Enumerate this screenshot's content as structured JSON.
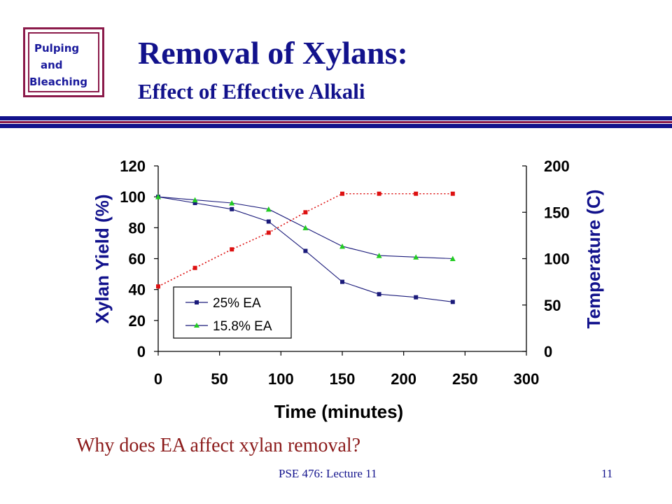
{
  "logo": {
    "line1": "Pulping",
    "line2": "and",
    "line3": "Bleaching"
  },
  "header": {
    "title": "Removal of Xylans:",
    "subtitle": "Effect of Effective Alkali"
  },
  "colors": {
    "title": "#12128c",
    "accent_red": "#8b1a4a",
    "series_ea25": "#1a1a7a",
    "series_ea158": "#22cc22",
    "temperature": "#dd1111"
  },
  "chart_data": {
    "type": "line",
    "xlabel": "Time (minutes)",
    "ylabel": "Xylan Yield (%)",
    "y2label": "Temperature (C)",
    "xlim": [
      0,
      300
    ],
    "ylim": [
      0,
      120
    ],
    "y2lim": [
      0,
      200
    ],
    "x_ticks": [
      "0",
      "50",
      "100",
      "150",
      "200",
      "250",
      "300"
    ],
    "y_ticks": [
      "0",
      "20",
      "40",
      "60",
      "80",
      "100",
      "120"
    ],
    "y2_ticks": [
      "0",
      "50",
      "100",
      "150",
      "200"
    ],
    "legend_position": "bottom-left",
    "grid": false,
    "series": [
      {
        "name": "25% EA",
        "axis": "left",
        "marker": "square",
        "x": [
          0,
          30,
          60,
          90,
          120,
          150,
          180,
          210,
          240
        ],
        "y": [
          100,
          96,
          92,
          84,
          65,
          45,
          37,
          35,
          32
        ]
      },
      {
        "name": "15.8% EA",
        "axis": "left",
        "marker": "triangle",
        "x": [
          0,
          30,
          60,
          90,
          120,
          150,
          180,
          210,
          240
        ],
        "y": [
          100,
          98,
          96,
          92,
          80,
          68,
          62,
          61,
          60
        ]
      },
      {
        "axis": "right",
        "marker": "square",
        "style": "dotted",
        "x": [
          0,
          30,
          60,
          90,
          120,
          150,
          180,
          210,
          240
        ],
        "y": [
          70,
          90,
          110,
          128,
          150,
          170,
          170,
          170,
          170
        ]
      }
    ]
  },
  "question": "Why does EA affect xylan removal?",
  "footer": {
    "course": "PSE 476: Lecture 11",
    "page": "11"
  }
}
